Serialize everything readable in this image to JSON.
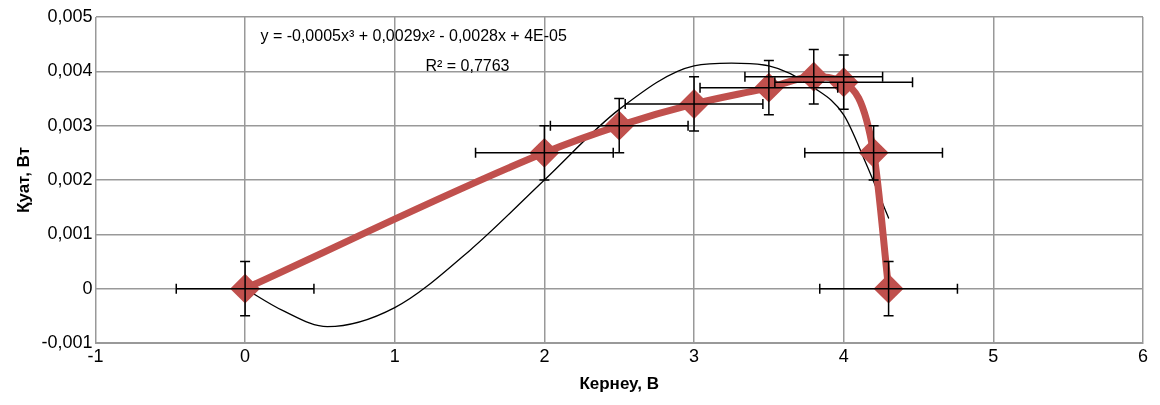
{
  "chart_data": {
    "type": "scatter",
    "xlabel": "Кернеу, В",
    "ylabel": "Қуат, Вт",
    "annotations": [
      "y = -0,0005x³ + 0,0029x² - 0,0028x + 4E-05",
      "R² = 0,7763"
    ],
    "x": [
      0,
      2,
      2.5,
      3,
      3.5,
      3.8,
      4,
      4.2,
      4.3
    ],
    "series": [
      {
        "type": "line",
        "color": "#c0504d",
        "marker": "diamond",
        "values": [
          0,
          0.0025,
          0.003,
          0.0034,
          0.0037,
          0.0039,
          0.0038,
          0.0025,
          0
        ],
        "errors": [
          0.0005,
          0.0005,
          0.0005,
          0.0005,
          0.0005,
          0.0005,
          0.0005,
          0.0005,
          0.0005
        ],
        "xerrors": [
          0.46,
          0.46,
          0.46,
          0.46,
          0.46,
          0.46,
          0.46,
          0.46,
          0.46
        ]
      },
      {
        "type": "line",
        "color": "#000000",
        "marker": "none",
        "x": [
          0,
          0.25,
          0.55,
          1,
          1.5,
          2,
          2.5,
          3,
          3.25,
          3.5,
          3.8,
          4,
          4.15,
          4.3
        ],
        "values": [
          0,
          -0.0004,
          -0.0007,
          -0.00035,
          0.0007,
          0.002,
          0.0033,
          0.0041,
          0.00415,
          0.0041,
          0.0037,
          0.0032,
          0.0023,
          0.0013
        ]
      }
    ],
    "xlim": [
      -1,
      6
    ],
    "xticks": [
      -1,
      0,
      1,
      2,
      3,
      4,
      5,
      6
    ],
    "ylim": [
      -0.001,
      0.005
    ],
    "yticks": [
      {
        "value": -0.001,
        "label": "-0,001"
      },
      {
        "value": 0,
        "label": "0"
      },
      {
        "value": 0.001,
        "label": "0,001"
      },
      {
        "value": 0.002,
        "label": "0,002"
      },
      {
        "value": 0.003,
        "label": "0,003"
      },
      {
        "value": 0.004,
        "label": "0,004"
      },
      {
        "value": 0.005,
        "label": "0,005"
      }
    ],
    "grid": true,
    "legend": false
  }
}
